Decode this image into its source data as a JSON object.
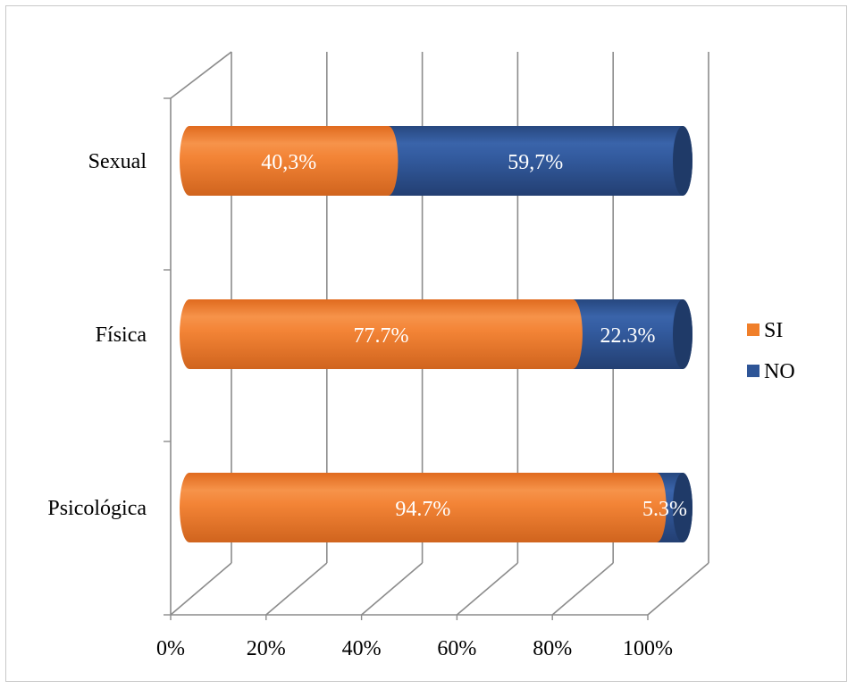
{
  "chart_data": {
    "type": "bar",
    "orientation": "horizontal",
    "stacked": "percent",
    "style": "3d-cylinder",
    "categories": [
      "Sexual",
      "Física",
      "Psicológica"
    ],
    "series": [
      {
        "name": "SI",
        "color": "#F07F2A",
        "values": [
          40.3,
          77.7,
          94.7
        ],
        "labels": [
          "40,3%",
          "77.7%",
          "94.7%"
        ]
      },
      {
        "name": "NO",
        "color": "#2E5597",
        "values": [
          59.7,
          22.3,
          5.3
        ],
        "labels": [
          "59,7%",
          "22.3%",
          "5.3%"
        ]
      }
    ],
    "xlim": [
      0,
      100
    ],
    "xticks": [
      "0%",
      "20%",
      "40%",
      "60%",
      "80%",
      "100%"
    ],
    "grid": true,
    "legend_position": "right"
  }
}
